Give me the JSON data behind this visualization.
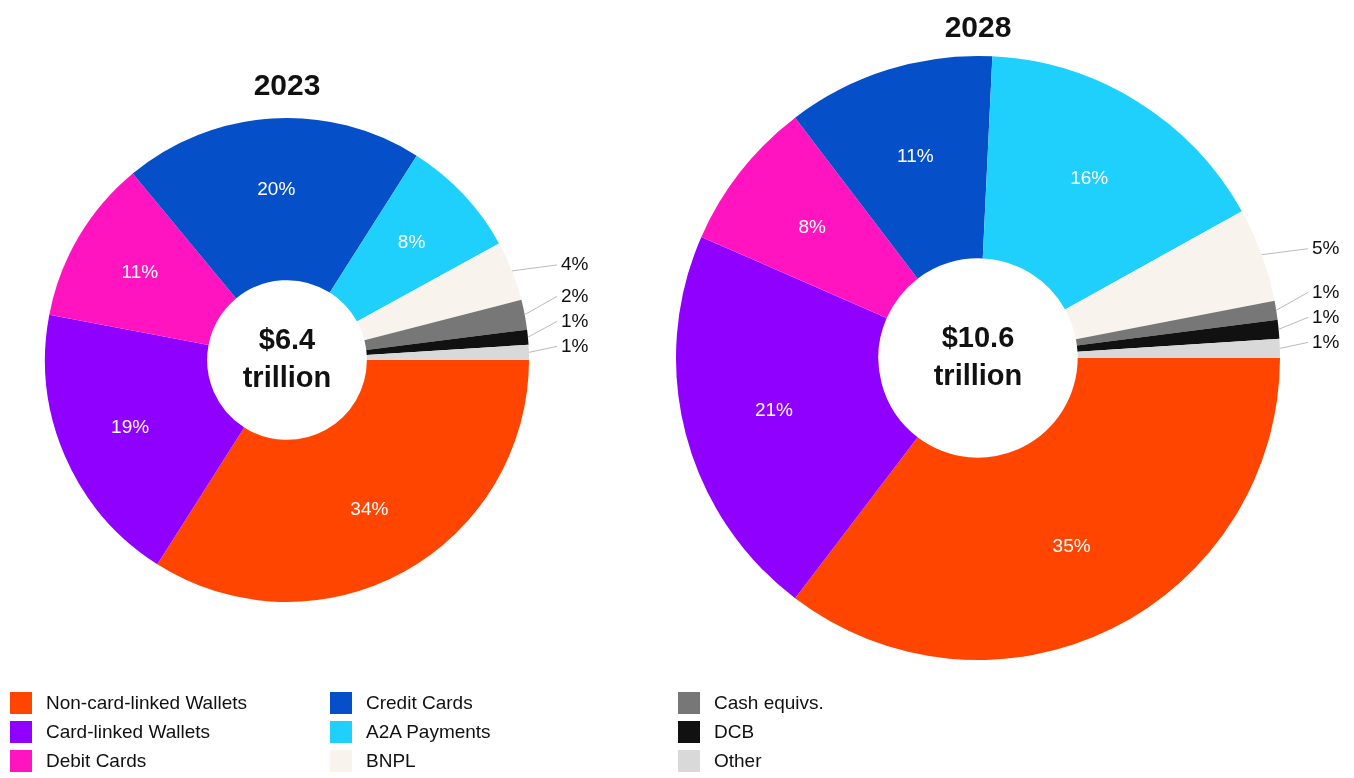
{
  "chart_data": [
    {
      "type": "donut",
      "title": "2023",
      "categories": [
        "Non-card-linked Wallets",
        "Card-linked Wallets",
        "Debit Cards",
        "Credit Cards",
        "A2A Payments",
        "BNPL",
        "Cash equivs.",
        "DCB",
        "Other"
      ],
      "values": [
        34,
        19,
        11,
        20,
        8,
        4,
        2,
        1,
        1
      ],
      "value_labels": [
        "34%",
        "19%",
        "11%",
        "20%",
        "8%",
        "4%",
        "2%",
        "1%",
        "1%"
      ],
      "colors": [
        "#ff4500",
        "#8f00ff",
        "#ff14c0",
        "#0550c8",
        "#1fd0fc",
        "#f9f3ee",
        "#777777",
        "#111111",
        "#d9d9d9"
      ],
      "legend": "bottom",
      "annotations": [
        "$6.4 trillion"
      ]
    },
    {
      "type": "donut",
      "title": "2028",
      "categories": [
        null,
        null,
        null,
        null,
        null,
        null,
        null,
        null,
        null
      ],
      "values": [
        35,
        21,
        8,
        11,
        16,
        5,
        1,
        1,
        1
      ],
      "value_labels": [
        "35%",
        "21%",
        "8%",
        "11%",
        "16%",
        "5%",
        "1%",
        "1%",
        "1%"
      ],
      "colors": [
        "#ff4500",
        "#8f00ff",
        "#ff14c0",
        "#0550c8",
        "#1fd0fc",
        "#f9f3ee",
        "#777777",
        "#111111",
        "#d9d9d9"
      ],
      "annotations": [
        "$10.6 trillion"
      ]
    }
  ]
}
